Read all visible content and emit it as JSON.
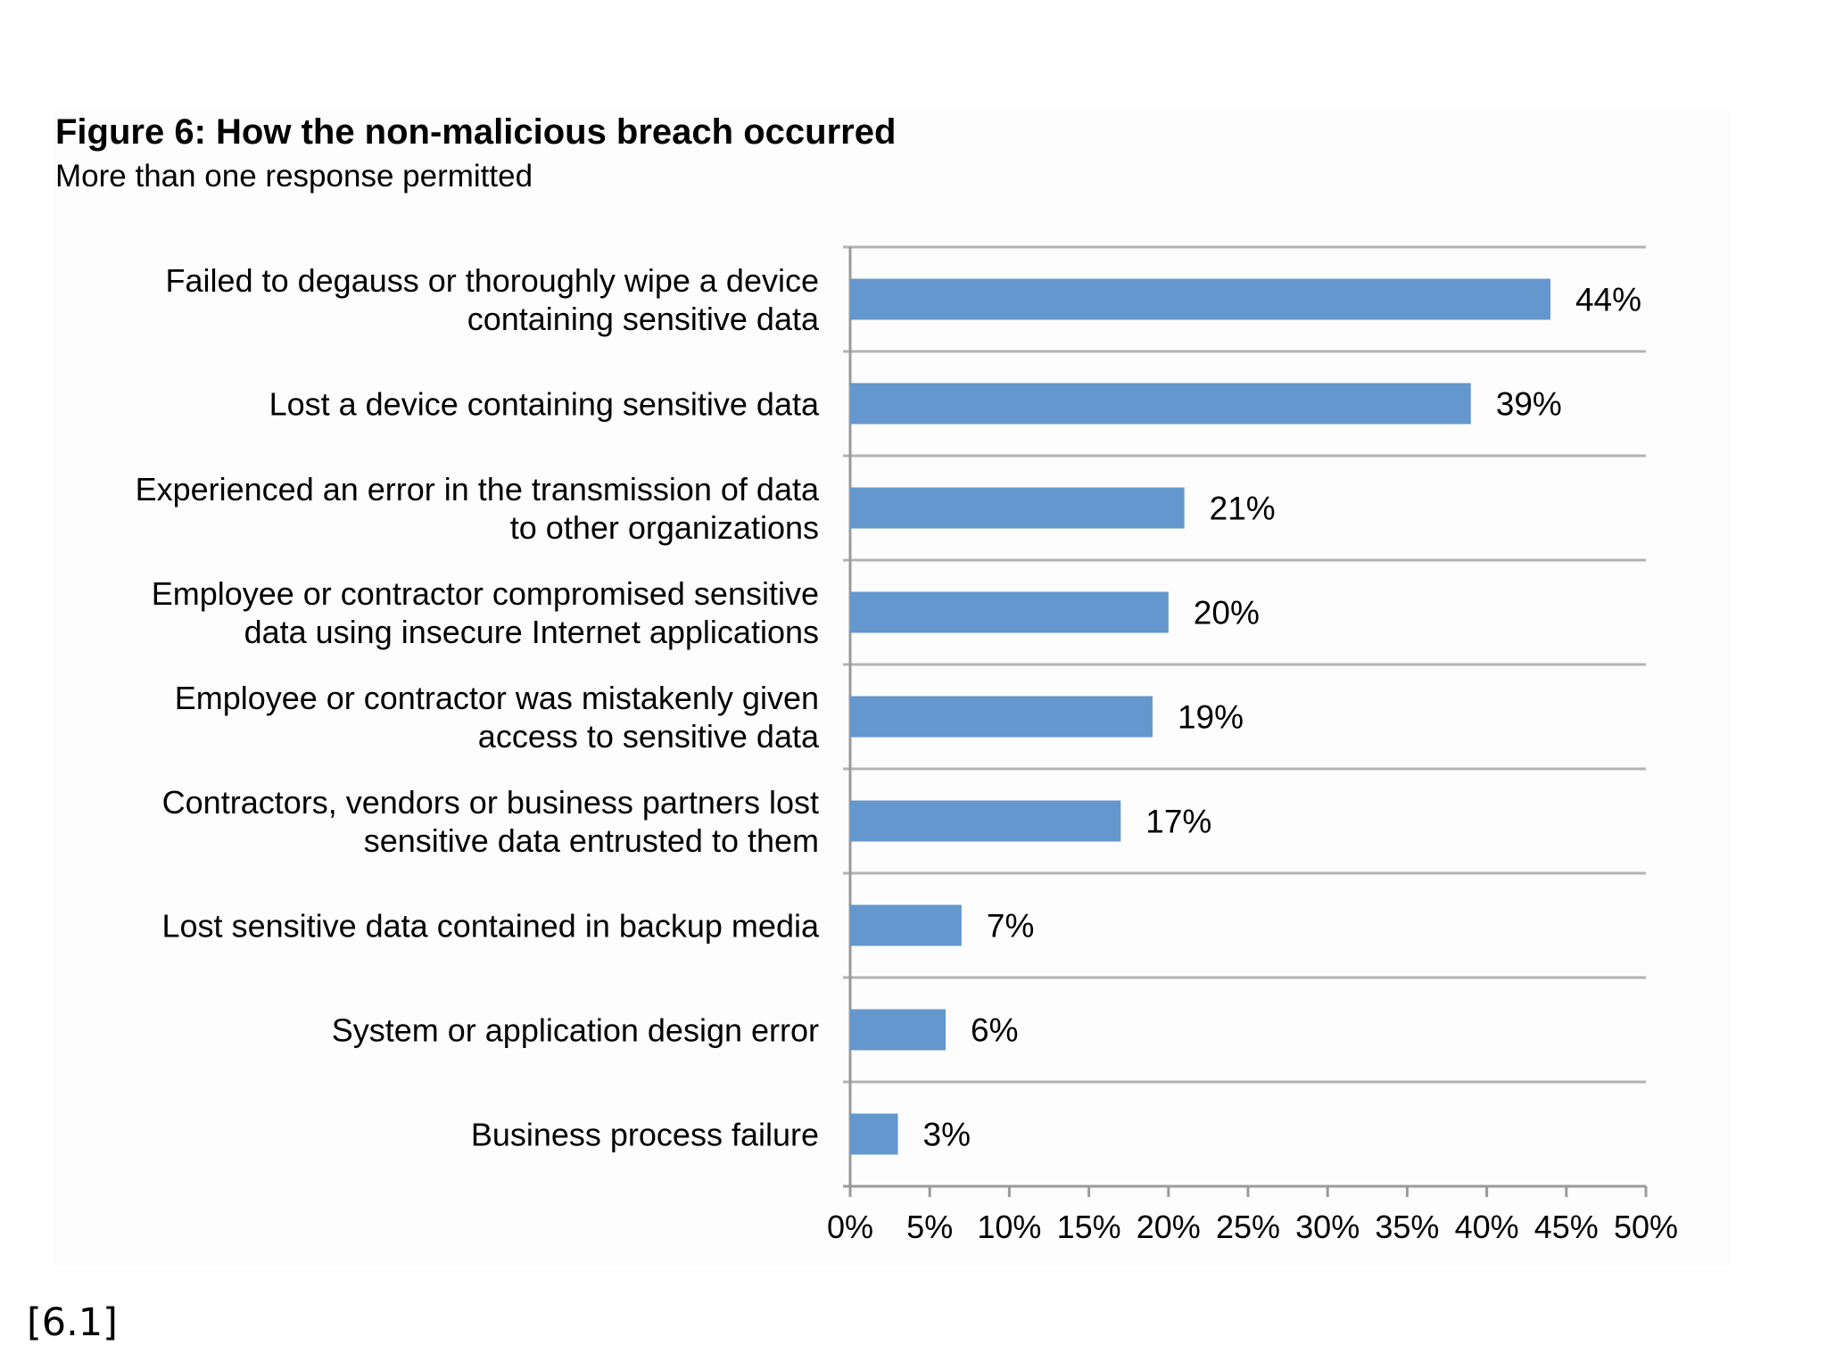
{
  "chart_data": {
    "type": "bar",
    "orientation": "horizontal",
    "title": "Figure 6: How the non-malicious breach occurred",
    "subtitle": "More than one response permitted",
    "categories": [
      [
        "Failed to degauss or thoroughly wipe a device",
        "containing sensitive data"
      ],
      [
        "Lost a device containing sensitive data"
      ],
      [
        "Experienced an error in the transmission of data",
        "to other organizations"
      ],
      [
        "Employee or contractor compromised sensitive",
        "data using insecure Internet applications"
      ],
      [
        "Employee or contractor was mistakenly given",
        "access to sensitive data"
      ],
      [
        "Contractors, vendors or business partners lost",
        "sensitive data entrusted to them"
      ],
      [
        "Lost sensitive data contained in backup media"
      ],
      [
        "System or application design error"
      ],
      [
        "Business process failure"
      ]
    ],
    "values": [
      44,
      39,
      21,
      20,
      19,
      17,
      7,
      6,
      3
    ],
    "data_labels": [
      "44%",
      "39%",
      "21%",
      "20%",
      "19%",
      "17%",
      "7%",
      "6%",
      "3%"
    ],
    "xlim": [
      0,
      50
    ],
    "xticks": [
      0,
      5,
      10,
      15,
      20,
      25,
      30,
      35,
      40,
      45,
      50
    ],
    "xtick_labels": [
      "0%",
      "5%",
      "10%",
      "15%",
      "20%",
      "25%",
      "30%",
      "35%",
      "40%",
      "45%",
      "50%"
    ],
    "xlabel": "",
    "ylabel": "",
    "bar_color": "#6497cd",
    "grid": "horizontal separators between categories"
  },
  "footnote": "[6.1]"
}
